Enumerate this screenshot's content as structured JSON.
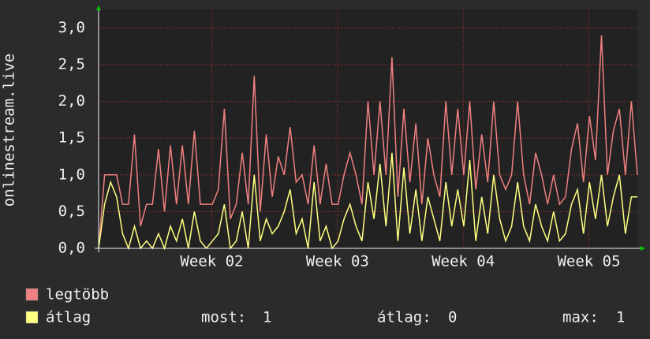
{
  "chart_data": {
    "type": "line",
    "y_label": "onlinestream.live",
    "ylim": [
      0,
      3.25
    ],
    "yticks": [
      {
        "value": 0,
        "label": "0,0"
      },
      {
        "value": 0.5,
        "label": "0,5"
      },
      {
        "value": 1,
        "label": "1,0"
      },
      {
        "value": 1.5,
        "label": "1,5"
      },
      {
        "value": 2,
        "label": "2,0"
      },
      {
        "value": 2.5,
        "label": "2,5"
      },
      {
        "value": 3,
        "label": "3,0"
      }
    ],
    "xlim": [
      0,
      90
    ],
    "xticks": [
      {
        "value": 18.9,
        "label": "Week 02"
      },
      {
        "value": 39.9,
        "label": "Week 03"
      },
      {
        "value": 60.9,
        "label": "Week 04"
      },
      {
        "value": 81.9,
        "label": "Week 05"
      }
    ],
    "grid": true,
    "series": [
      {
        "name": "legtöbb",
        "color": "#f08080",
        "values": [
          0,
          1,
          1,
          1,
          0.6,
          0.6,
          1.55,
          0.3,
          0.6,
          0.6,
          1.35,
          0.5,
          1.4,
          0.6,
          1.4,
          0.6,
          1.6,
          0.6,
          0.6,
          0.6,
          0.8,
          1.9,
          0.4,
          0.6,
          1.3,
          0.6,
          2.35,
          0.5,
          1.55,
          0.7,
          1.25,
          1.0,
          1.65,
          0.9,
          1.0,
          0.6,
          1.4,
          0.6,
          1.15,
          0.6,
          0.6,
          1.0,
          1.3,
          1.0,
          0.6,
          2.0,
          1.0,
          2.0,
          1.0,
          2.6,
          0.7,
          1.9,
          0.9,
          1.7,
          0.6,
          1.5,
          1.0,
          0.7,
          2.0,
          1.0,
          1.9,
          1.0,
          2.0,
          0.8,
          1.55,
          0.9,
          2.0,
          1.0,
          0.8,
          1.0,
          2.0,
          1.0,
          0.6,
          1.3,
          1.0,
          0.6,
          1.0,
          0.6,
          0.7,
          1.35,
          1.7,
          0.9,
          1.8,
          1.2,
          2.9,
          1.0,
          1.6,
          1.9,
          1.0,
          2.0,
          1.0
        ]
      },
      {
        "name": "átlag",
        "color": "#ffff80",
        "values": [
          0,
          0.6,
          0.9,
          0.7,
          0.2,
          0,
          0.3,
          0,
          0.1,
          0,
          0.2,
          0,
          0.3,
          0.1,
          0.4,
          0,
          0.5,
          0.1,
          0,
          0.1,
          0.2,
          0.6,
          0,
          0.1,
          0.5,
          0,
          1.0,
          0.1,
          0.4,
          0.2,
          0.3,
          0.5,
          0.8,
          0.2,
          0.4,
          0,
          0.9,
          0.1,
          0.3,
          0,
          0.1,
          0.4,
          0.6,
          0.3,
          0.1,
          0.9,
          0.4,
          1.15,
          0.3,
          1.3,
          0.1,
          1.1,
          0.2,
          0.8,
          0.1,
          0.7,
          0.4,
          0.1,
          0.9,
          0.3,
          0.8,
          0.3,
          1.2,
          0.1,
          0.7,
          0.2,
          1.0,
          0.4,
          0.1,
          0.3,
          0.9,
          0.3,
          0.1,
          0.6,
          0.3,
          0.1,
          0.5,
          0.1,
          0.2,
          0.6,
          0.8,
          0.2,
          0.9,
          0.4,
          1.0,
          0.3,
          0.7,
          1.0,
          0.2,
          0.7,
          0.7
        ]
      }
    ],
    "stats": [
      {
        "label": "most:",
        "value": 1
      },
      {
        "label": "átlag:",
        "value": 0
      },
      {
        "label": "max:",
        "value": 1
      }
    ]
  }
}
